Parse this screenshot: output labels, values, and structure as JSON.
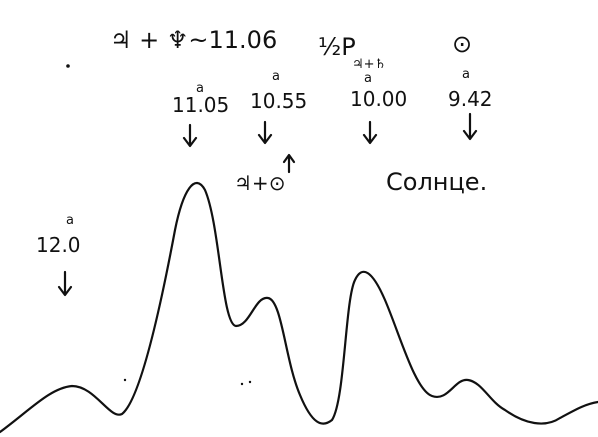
{
  "header": {
    "title": "♃ + ♆~11.06",
    "formula": "½P",
    "formula_subscript": "♃+♄",
    "sun_symbol": "⊙"
  },
  "annotations": [
    {
      "label": "11.05",
      "superscript": "a"
    },
    {
      "label": "10.55",
      "superscript": "a"
    },
    {
      "label": "10.00",
      "superscript": "a"
    },
    {
      "label": "9.42",
      "superscript": "a"
    },
    {
      "label": "12.0",
      "superscript": "a"
    }
  ],
  "conjunction": "♃+⊙",
  "note": "Солнце."
}
